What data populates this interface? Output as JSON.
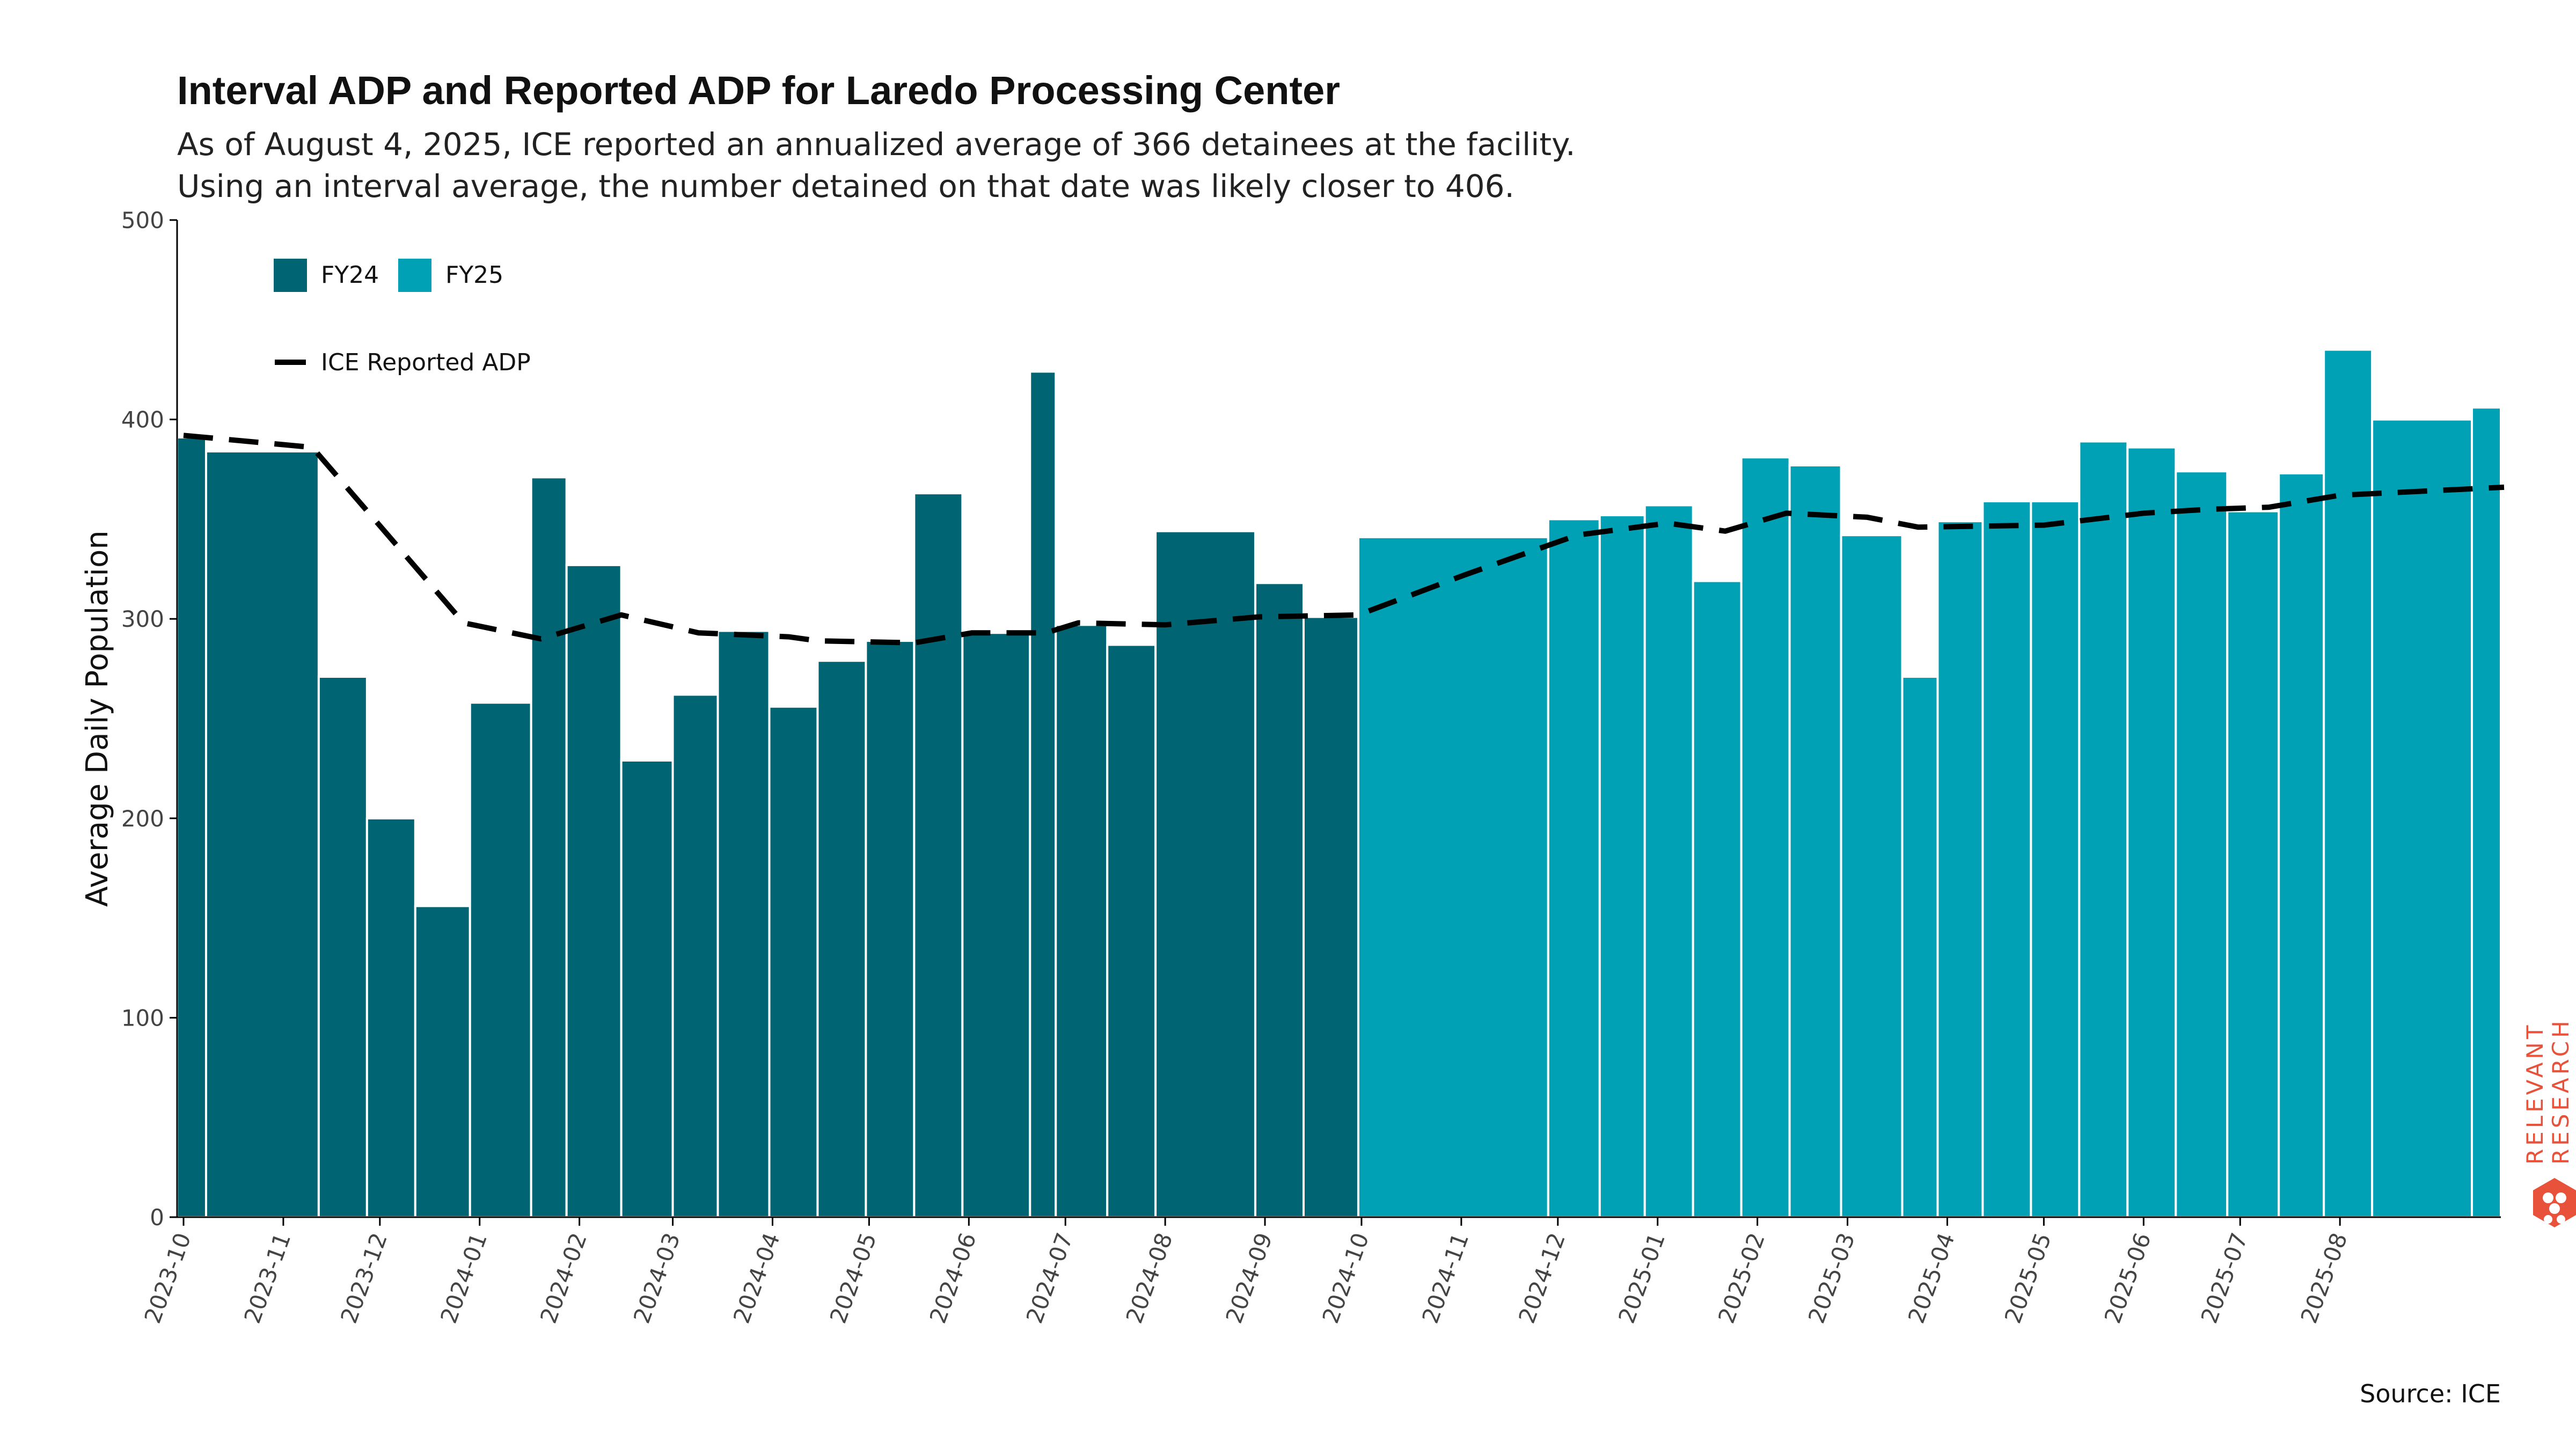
{
  "title": "Interval ADP and Reported ADP for Laredo Processing Center",
  "subtitle_line1": "As of August 4, 2025, ICE reported an annualized average of 366 detainees at the facility.",
  "subtitle_line2": "Using an interval average, the number detained on that date was likely closer to 406.",
  "source": "Source: ICE",
  "logo_text_line1": "RELEVANT",
  "logo_text_line2": "RESEARCH",
  "colors": {
    "fy24": "#006472",
    "fy25": "#00a0b5",
    "line": "#000000",
    "logo": "#e8513a"
  },
  "chart_data": {
    "type": "bar",
    "title": "Interval ADP and Reported ADP for Laredo Processing Center",
    "ylabel": "Average Daily Population",
    "xlabel": "",
    "ylim": [
      0,
      500
    ],
    "yticks": [
      0,
      100,
      200,
      300,
      400,
      500
    ],
    "xlim": [
      "2023-09-29",
      "2025-09-20"
    ],
    "xticks": [
      "2023-10",
      "2023-11",
      "2023-12",
      "2024-01",
      "2024-02",
      "2024-03",
      "2024-04",
      "2024-05",
      "2024-06",
      "2024-07",
      "2024-08",
      "2024-09",
      "2024-10",
      "2024-11",
      "2024-12",
      "2025-01",
      "2025-02",
      "2025-03",
      "2025-04",
      "2025-05",
      "2025-06",
      "2025-07",
      "2025-08"
    ],
    "grid": false,
    "legend": {
      "placement": "top-left",
      "bar_entries": [
        "FY24",
        "FY25"
      ],
      "line_entry": "ICE Reported ADP"
    },
    "bars": [
      {
        "start": "2023-09-29",
        "end": "2023-10-08",
        "value": 391,
        "fy": "FY24"
      },
      {
        "start": "2023-10-08",
        "end": "2023-11-12",
        "value": 384,
        "fy": "FY24"
      },
      {
        "start": "2023-11-12",
        "end": "2023-11-27",
        "value": 271,
        "fy": "FY24"
      },
      {
        "start": "2023-11-27",
        "end": "2023-12-12",
        "value": 200,
        "fy": "FY24"
      },
      {
        "start": "2023-12-12",
        "end": "2023-12-29",
        "value": 156,
        "fy": "FY24"
      },
      {
        "start": "2023-12-29",
        "end": "2024-01-17",
        "value": 258,
        "fy": "FY24"
      },
      {
        "start": "2024-01-17",
        "end": "2024-01-28",
        "value": 371,
        "fy": "FY24"
      },
      {
        "start": "2024-01-28",
        "end": "2024-02-14",
        "value": 327,
        "fy": "FY24"
      },
      {
        "start": "2024-02-14",
        "end": "2024-03-01",
        "value": 229,
        "fy": "FY24"
      },
      {
        "start": "2024-03-01",
        "end": "2024-03-15",
        "value": 262,
        "fy": "FY24"
      },
      {
        "start": "2024-03-15",
        "end": "2024-03-31",
        "value": 294,
        "fy": "FY24"
      },
      {
        "start": "2024-03-31",
        "end": "2024-04-15",
        "value": 256,
        "fy": "FY24"
      },
      {
        "start": "2024-04-15",
        "end": "2024-04-30",
        "value": 279,
        "fy": "FY24"
      },
      {
        "start": "2024-04-30",
        "end": "2024-05-15",
        "value": 289,
        "fy": "FY24"
      },
      {
        "start": "2024-05-15",
        "end": "2024-05-30",
        "value": 363,
        "fy": "FY24"
      },
      {
        "start": "2024-05-30",
        "end": "2024-06-20",
        "value": 293,
        "fy": "FY24"
      },
      {
        "start": "2024-06-20",
        "end": "2024-06-28",
        "value": 424,
        "fy": "FY24"
      },
      {
        "start": "2024-06-28",
        "end": "2024-07-14",
        "value": 297,
        "fy": "FY24"
      },
      {
        "start": "2024-07-14",
        "end": "2024-07-29",
        "value": 287,
        "fy": "FY24"
      },
      {
        "start": "2024-07-29",
        "end": "2024-08-29",
        "value": 344,
        "fy": "FY24"
      },
      {
        "start": "2024-08-29",
        "end": "2024-09-13",
        "value": 318,
        "fy": "FY24"
      },
      {
        "start": "2024-09-13",
        "end": "2024-09-30",
        "value": 301,
        "fy": "FY24"
      },
      {
        "start": "2024-09-30",
        "end": "2024-11-28",
        "value": 341,
        "fy": "FY25"
      },
      {
        "start": "2024-11-28",
        "end": "2024-12-14",
        "value": 350,
        "fy": "FY25"
      },
      {
        "start": "2024-12-14",
        "end": "2024-12-28",
        "value": 352,
        "fy": "FY25"
      },
      {
        "start": "2024-12-28",
        "end": "2025-01-12",
        "value": 357,
        "fy": "FY25"
      },
      {
        "start": "2025-01-12",
        "end": "2025-01-27",
        "value": 319,
        "fy": "FY25"
      },
      {
        "start": "2025-01-27",
        "end": "2025-02-11",
        "value": 381,
        "fy": "FY25"
      },
      {
        "start": "2025-02-11",
        "end": "2025-02-27",
        "value": 377,
        "fy": "FY25"
      },
      {
        "start": "2025-02-27",
        "end": "2025-03-18",
        "value": 342,
        "fy": "FY25"
      },
      {
        "start": "2025-03-18",
        "end": "2025-03-29",
        "value": 271,
        "fy": "FY25"
      },
      {
        "start": "2025-03-29",
        "end": "2025-04-12",
        "value": 349,
        "fy": "FY25"
      },
      {
        "start": "2025-04-12",
        "end": "2025-04-27",
        "value": 359,
        "fy": "FY25"
      },
      {
        "start": "2025-04-27",
        "end": "2025-05-12",
        "value": 359,
        "fy": "FY25"
      },
      {
        "start": "2025-05-12",
        "end": "2025-05-27",
        "value": 389,
        "fy": "FY25"
      },
      {
        "start": "2025-05-27",
        "end": "2025-06-11",
        "value": 386,
        "fy": "FY25"
      },
      {
        "start": "2025-06-11",
        "end": "2025-06-27",
        "value": 374,
        "fy": "FY25"
      },
      {
        "start": "2025-06-27",
        "end": "2025-07-13",
        "value": 354,
        "fy": "FY25"
      },
      {
        "start": "2025-07-13",
        "end": "2025-07-27",
        "value": 373,
        "fy": "FY25"
      },
      {
        "start": "2025-07-27",
        "end": "2025-08-11",
        "value": 435,
        "fy": "FY25"
      },
      {
        "start": "2025-08-11",
        "end": "2025-09-11",
        "value": 400,
        "fy": "FY25"
      },
      {
        "start": "2025-09-11",
        "end": "2025-09-25",
        "value": 406,
        "fy": "FY25"
      }
    ],
    "line_series": {
      "name": "ICE Reported ADP",
      "points": [
        {
          "x": "2023-10-01",
          "y": 392
        },
        {
          "x": "2023-11-10",
          "y": 386
        },
        {
          "x": "2023-12-27",
          "y": 298
        },
        {
          "x": "2024-01-20",
          "y": 290
        },
        {
          "x": "2024-02-14",
          "y": 302
        },
        {
          "x": "2024-03-09",
          "y": 293
        },
        {
          "x": "2024-04-06",
          "y": 291
        },
        {
          "x": "2024-04-15",
          "y": 289
        },
        {
          "x": "2024-05-15",
          "y": 288
        },
        {
          "x": "2024-06-02",
          "y": 293
        },
        {
          "x": "2024-06-25",
          "y": 293
        },
        {
          "x": "2024-07-05",
          "y": 298
        },
        {
          "x": "2024-08-01",
          "y": 297
        },
        {
          "x": "2024-08-30",
          "y": 301
        },
        {
          "x": "2024-09-30",
          "y": 302
        },
        {
          "x": "2024-11-02",
          "y": 322
        },
        {
          "x": "2024-12-07",
          "y": 342
        },
        {
          "x": "2025-01-04",
          "y": 348
        },
        {
          "x": "2025-01-22",
          "y": 344
        },
        {
          "x": "2025-02-10",
          "y": 353
        },
        {
          "x": "2025-03-07",
          "y": 351
        },
        {
          "x": "2025-03-23",
          "y": 346
        },
        {
          "x": "2025-05-01",
          "y": 347
        },
        {
          "x": "2025-06-01",
          "y": 353
        },
        {
          "x": "2025-06-22",
          "y": 355
        },
        {
          "x": "2025-07-10",
          "y": 356
        },
        {
          "x": "2025-08-01",
          "y": 362
        },
        {
          "x": "2025-09-21",
          "y": 366
        }
      ]
    }
  }
}
